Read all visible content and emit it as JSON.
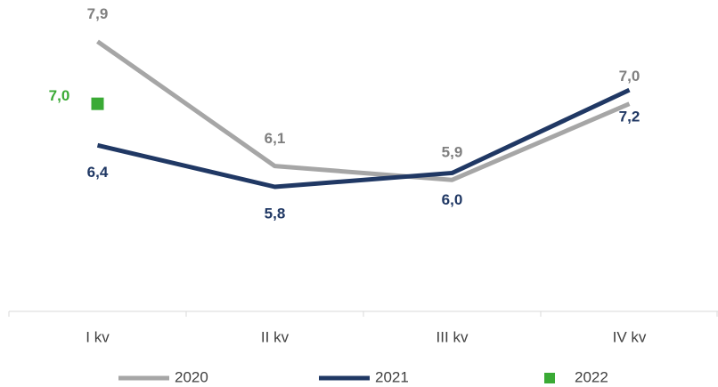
{
  "chart_data": {
    "type": "line",
    "categories": [
      "I kv",
      "II kv",
      "III kv",
      "IV kv"
    ],
    "series": [
      {
        "name": "2020",
        "color": "#a6a6a6",
        "label_color": "#7f7f7f",
        "values": [
          7.9,
          6.1,
          5.9,
          7.0
        ],
        "value_labels": [
          "7,9",
          "6,1",
          "5,9",
          "7,0"
        ],
        "label_position": "above"
      },
      {
        "name": "2021",
        "color": "#203864",
        "label_color": "#203864",
        "values": [
          6.4,
          5.8,
          6.0,
          7.2
        ],
        "value_labels": [
          "6,4",
          "5,8",
          "6,0",
          "7,2"
        ],
        "label_position": "below"
      },
      {
        "name": "2022",
        "color": "#3aaa35",
        "label_color": "#3aaa35",
        "marker": "square",
        "values": [
          7.0,
          null,
          null,
          null
        ],
        "value_labels": [
          "7,0",
          null,
          null,
          null
        ],
        "label_position": "left"
      }
    ],
    "ylim": [
      4,
      8.5
    ],
    "legend": "bottom"
  }
}
